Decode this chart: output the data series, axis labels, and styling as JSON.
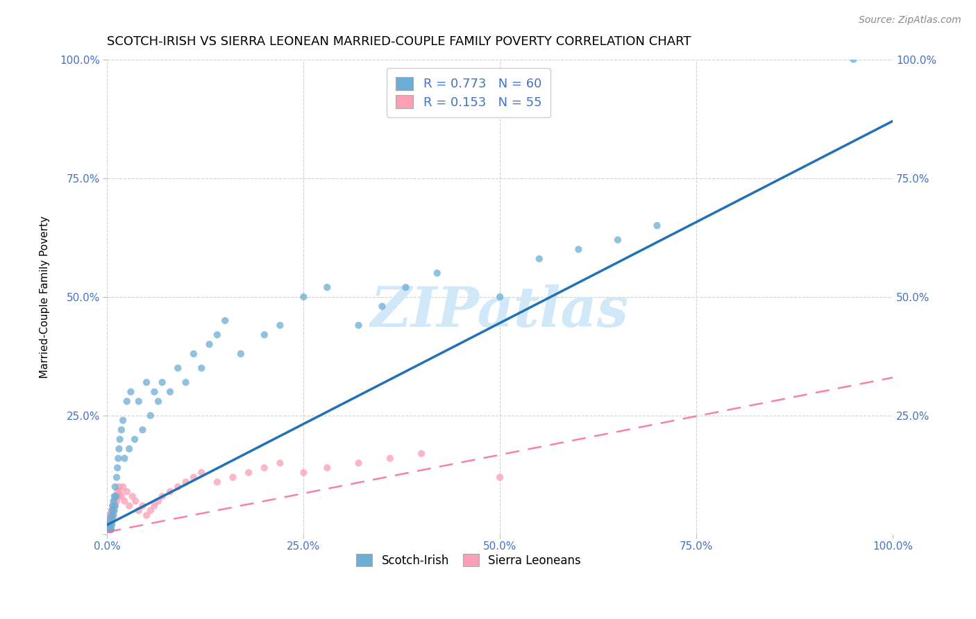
{
  "title": "SCOTCH-IRISH VS SIERRA LEONEAN MARRIED-COUPLE FAMILY POVERTY CORRELATION CHART",
  "source": "Source: ZipAtlas.com",
  "ylabel": "Married-Couple Family Poverty",
  "watermark": "ZIPatlas",
  "xlim": [
    0,
    1
  ],
  "ylim": [
    0,
    1
  ],
  "xticks": [
    0,
    0.25,
    0.5,
    0.75,
    1.0
  ],
  "yticks": [
    0,
    0.25,
    0.5,
    0.75,
    1.0
  ],
  "xticklabels": [
    "0.0%",
    "25.0%",
    "50.0%",
    "75.0%",
    "100.0%"
  ],
  "yticklabels": [
    "",
    "25.0%",
    "50.0%",
    "75.0%",
    "100.0%"
  ],
  "scotch_irish_color": "#6baed6",
  "sierra_leonean_color": "#fa9fb5",
  "scotch_irish_line_color": "#2171b5",
  "sierra_leonean_line_color": "#f768a1",
  "R_scotch": 0.773,
  "N_scotch": 60,
  "R_sierra": 0.153,
  "N_sierra": 55,
  "scotch_irish_x": [
    0.002,
    0.003,
    0.003,
    0.004,
    0.004,
    0.005,
    0.005,
    0.006,
    0.006,
    0.007,
    0.007,
    0.008,
    0.008,
    0.009,
    0.009,
    0.01,
    0.01,
    0.011,
    0.012,
    0.013,
    0.014,
    0.015,
    0.016,
    0.018,
    0.02,
    0.022,
    0.025,
    0.028,
    0.03,
    0.035,
    0.04,
    0.045,
    0.05,
    0.055,
    0.06,
    0.065,
    0.07,
    0.08,
    0.09,
    0.1,
    0.11,
    0.12,
    0.13,
    0.14,
    0.15,
    0.17,
    0.2,
    0.22,
    0.25,
    0.28,
    0.32,
    0.35,
    0.38,
    0.42,
    0.5,
    0.55,
    0.6,
    0.65,
    0.7,
    0.95
  ],
  "scotch_irish_y": [
    0.02,
    0.01,
    0.03,
    0.01,
    0.02,
    0.01,
    0.04,
    0.02,
    0.05,
    0.03,
    0.06,
    0.04,
    0.07,
    0.05,
    0.08,
    0.06,
    0.1,
    0.08,
    0.12,
    0.14,
    0.16,
    0.18,
    0.2,
    0.22,
    0.24,
    0.16,
    0.28,
    0.18,
    0.3,
    0.2,
    0.28,
    0.22,
    0.32,
    0.25,
    0.3,
    0.28,
    0.32,
    0.3,
    0.35,
    0.32,
    0.38,
    0.35,
    0.4,
    0.42,
    0.45,
    0.38,
    0.42,
    0.44,
    0.5,
    0.52,
    0.44,
    0.48,
    0.52,
    0.55,
    0.5,
    0.58,
    0.6,
    0.62,
    0.65,
    1.0
  ],
  "sierra_leonean_x": [
    0.001,
    0.001,
    0.002,
    0.002,
    0.002,
    0.003,
    0.003,
    0.003,
    0.004,
    0.004,
    0.005,
    0.005,
    0.006,
    0.006,
    0.007,
    0.007,
    0.008,
    0.009,
    0.01,
    0.011,
    0.012,
    0.013,
    0.014,
    0.015,
    0.016,
    0.018,
    0.02,
    0.022,
    0.025,
    0.028,
    0.032,
    0.036,
    0.04,
    0.045,
    0.05,
    0.055,
    0.06,
    0.065,
    0.07,
    0.08,
    0.09,
    0.1,
    0.11,
    0.12,
    0.14,
    0.16,
    0.18,
    0.2,
    0.22,
    0.25,
    0.28,
    0.32,
    0.36,
    0.4,
    0.5
  ],
  "sierra_leonean_y": [
    0.01,
    0.02,
    0.01,
    0.02,
    0.03,
    0.02,
    0.03,
    0.04,
    0.01,
    0.03,
    0.02,
    0.04,
    0.03,
    0.05,
    0.04,
    0.06,
    0.05,
    0.07,
    0.06,
    0.08,
    0.07,
    0.09,
    0.08,
    0.1,
    0.09,
    0.08,
    0.1,
    0.07,
    0.09,
    0.06,
    0.08,
    0.07,
    0.05,
    0.06,
    0.04,
    0.05,
    0.06,
    0.07,
    0.08,
    0.09,
    0.1,
    0.11,
    0.12,
    0.13,
    0.11,
    0.12,
    0.13,
    0.14,
    0.15,
    0.13,
    0.14,
    0.15,
    0.16,
    0.17,
    0.12
  ],
  "scotch_irish_line_x": [
    0.0,
    1.0
  ],
  "scotch_irish_line_y": [
    0.02,
    0.87
  ],
  "sierra_line_x": [
    0.0,
    1.0
  ],
  "sierra_line_y": [
    0.005,
    0.33
  ],
  "background_color": "#ffffff",
  "grid_color": "#cccccc",
  "title_fontsize": 13,
  "legend_label1": "Scotch-Irish",
  "legend_label2": "Sierra Leoneans"
}
